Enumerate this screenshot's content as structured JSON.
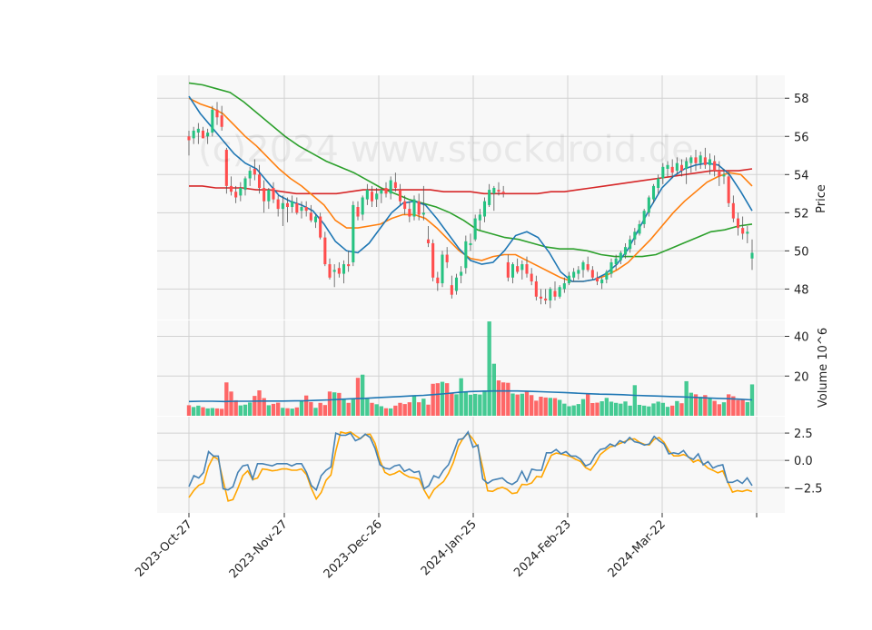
{
  "chart_data": {
    "type": "candlestick",
    "watermark": "(c)2024 www.stockdroid.de",
    "colors": {
      "up": "#26c281",
      "down": "#ff4d4d",
      "ma_fast": "#1f77b4",
      "ma_mid": "#ff7f0e",
      "ma_slow": "#2ca02c",
      "ma_long": "#d62728",
      "volume_avg": "#1f77b4",
      "indicator_a": "#4682b4",
      "indicator_b": "#ffa500",
      "panel_bg": "#f8f8f8",
      "grid": "#d2d2d2"
    },
    "x_ticks": [
      "2023-Oct-27",
      "2023-Nov-27",
      "2023-Dec-26",
      "2024-Jan-25",
      "2024-Feb-23",
      "2024-Mar-22"
    ],
    "price_panel": {
      "ylabel": "Price",
      "yticks": [
        48,
        50,
        52,
        54,
        56,
        58
      ],
      "ylim": [
        46.4,
        59.2
      ],
      "candles": [
        [
          56.0,
          56.3,
          55.0,
          55.8
        ],
        [
          55.9,
          56.5,
          55.6,
          56.3
        ],
        [
          56.2,
          56.7,
          55.6,
          56.4
        ],
        [
          56.3,
          56.5,
          55.9,
          55.9
        ],
        [
          56.0,
          56.4,
          55.6,
          56.2
        ],
        [
          56.2,
          57.6,
          56.0,
          57.4
        ],
        [
          57.4,
          57.8,
          56.6,
          57.0
        ],
        [
          57.1,
          57.6,
          56.3,
          56.5
        ],
        [
          55.3,
          55.4,
          53.0,
          53.4
        ],
        [
          53.4,
          53.9,
          52.9,
          53.1
        ],
        [
          53.1,
          53.4,
          52.5,
          52.8
        ],
        [
          52.9,
          53.6,
          52.6,
          53.3
        ],
        [
          53.2,
          53.9,
          52.9,
          53.8
        ],
        [
          53.8,
          54.4,
          53.4,
          54.2
        ],
        [
          54.3,
          54.8,
          53.7,
          54.0
        ],
        [
          54.0,
          54.5,
          53.0,
          53.3
        ],
        [
          53.3,
          53.7,
          52.0,
          52.6
        ],
        [
          52.6,
          53.3,
          52.2,
          53.2
        ],
        [
          53.3,
          53.6,
          52.5,
          52.7
        ],
        [
          52.7,
          52.9,
          51.8,
          52.2
        ],
        [
          52.2,
          52.9,
          51.3,
          52.5
        ],
        [
          52.5,
          52.8,
          51.5,
          52.3
        ],
        [
          52.3,
          52.9,
          52.0,
          52.6
        ],
        [
          52.5,
          52.8,
          51.9,
          52.0
        ],
        [
          52.1,
          52.6,
          51.7,
          52.3
        ],
        [
          52.3,
          52.6,
          51.8,
          52.1
        ],
        [
          52.0,
          52.4,
          51.5,
          51.6
        ],
        [
          51.5,
          51.9,
          51.2,
          51.8
        ],
        [
          51.8,
          52.0,
          50.6,
          50.7
        ],
        [
          50.7,
          51.0,
          49.2,
          49.3
        ],
        [
          49.3,
          49.6,
          48.5,
          48.6
        ],
        [
          48.9,
          49.3,
          48.1,
          49.0
        ],
        [
          49.1,
          49.4,
          48.6,
          48.8
        ],
        [
          48.8,
          49.5,
          48.3,
          49.3
        ],
        [
          49.3,
          50.0,
          48.9,
          49.2
        ],
        [
          49.4,
          52.6,
          49.2,
          52.4
        ],
        [
          52.3,
          52.6,
          51.6,
          51.8
        ],
        [
          51.9,
          52.9,
          51.6,
          52.8
        ],
        [
          52.7,
          53.5,
          52.4,
          53.2
        ],
        [
          53.1,
          53.4,
          52.3,
          52.6
        ],
        [
          52.7,
          53.3,
          52.3,
          53.0
        ],
        [
          53.0,
          53.3,
          52.5,
          53.2
        ],
        [
          53.3,
          53.6,
          52.8,
          53.0
        ],
        [
          53.0,
          53.9,
          52.7,
          53.7
        ],
        [
          53.6,
          54.1,
          53.1,
          53.3
        ],
        [
          53.2,
          53.5,
          52.4,
          52.6
        ],
        [
          52.6,
          52.9,
          51.9,
          52.2
        ],
        [
          52.2,
          52.6,
          51.5,
          51.8
        ],
        [
          51.8,
          52.9,
          51.6,
          52.7
        ],
        [
          52.6,
          53.0,
          51.6,
          51.9
        ],
        [
          51.9,
          53.4,
          51.6,
          52.0
        ],
        [
          50.6,
          51.3,
          50.2,
          50.4
        ],
        [
          50.4,
          50.6,
          48.4,
          48.6
        ],
        [
          48.6,
          48.9,
          47.9,
          48.3
        ],
        [
          48.3,
          50.0,
          48.1,
          49.8
        ],
        [
          49.8,
          50.2,
          49.1,
          49.4
        ],
        [
          48.2,
          48.7,
          47.5,
          47.7
        ],
        [
          47.9,
          48.8,
          47.7,
          48.6
        ],
        [
          48.7,
          49.2,
          48.3,
          48.9
        ],
        [
          49.1,
          50.8,
          48.8,
          50.5
        ],
        [
          50.3,
          50.9,
          50.0,
          50.4
        ],
        [
          50.6,
          51.9,
          50.5,
          51.7
        ],
        [
          51.6,
          52.2,
          51.1,
          51.9
        ],
        [
          51.8,
          52.8,
          51.5,
          52.6
        ],
        [
          52.4,
          53.5,
          52.3,
          53.2
        ],
        [
          53.0,
          53.4,
          52.1,
          53.3
        ],
        [
          53.2,
          53.6,
          52.9,
          53.1
        ],
        [
          53.1,
          53.4,
          52.8,
          53.0
        ],
        [
          49.4,
          49.8,
          48.4,
          48.6
        ],
        [
          48.6,
          49.4,
          48.3,
          49.3
        ],
        [
          49.2,
          49.6,
          48.8,
          48.9
        ],
        [
          49.0,
          49.5,
          48.5,
          49.3
        ],
        [
          49.3,
          49.7,
          48.6,
          48.8
        ],
        [
          48.8,
          49.1,
          48.2,
          48.4
        ],
        [
          48.4,
          48.7,
          47.4,
          47.6
        ],
        [
          47.6,
          48.0,
          47.2,
          47.5
        ],
        [
          47.5,
          48.0,
          47.2,
          47.4
        ],
        [
          47.4,
          48.1,
          47.0,
          48.0
        ],
        [
          47.9,
          48.4,
          47.4,
          47.6
        ],
        [
          47.6,
          48.2,
          47.5,
          48.1
        ],
        [
          48.0,
          48.6,
          47.8,
          48.3
        ],
        [
          48.3,
          48.9,
          48.2,
          48.7
        ],
        [
          48.6,
          49.1,
          48.4,
          48.9
        ],
        [
          48.8,
          49.2,
          48.5,
          49.0
        ],
        [
          49.0,
          49.5,
          48.6,
          49.4
        ],
        [
          49.3,
          49.7,
          48.9,
          49.0
        ],
        [
          49.0,
          49.2,
          48.5,
          48.6
        ],
        [
          48.6,
          48.9,
          48.2,
          48.4
        ],
        [
          48.3,
          48.6,
          48.0,
          48.5
        ],
        [
          48.5,
          49.0,
          48.3,
          48.9
        ],
        [
          48.8,
          49.6,
          48.6,
          49.4
        ],
        [
          49.3,
          49.8,
          49.0,
          49.6
        ],
        [
          49.5,
          50.0,
          49.3,
          49.9
        ],
        [
          49.8,
          50.4,
          49.6,
          50.2
        ],
        [
          50.1,
          50.8,
          49.9,
          50.6
        ],
        [
          50.6,
          51.2,
          50.3,
          51.0
        ],
        [
          50.9,
          51.6,
          50.8,
          51.4
        ],
        [
          51.4,
          52.2,
          51.2,
          52.1
        ],
        [
          52.0,
          52.9,
          51.8,
          52.8
        ],
        [
          52.7,
          53.5,
          52.5,
          53.4
        ],
        [
          53.3,
          54.0,
          53.0,
          53.8
        ],
        [
          53.8,
          54.6,
          53.5,
          54.4
        ],
        [
          54.3,
          54.7,
          53.9,
          54.5
        ],
        [
          54.4,
          54.8,
          53.8,
          54.1
        ],
        [
          54.2,
          54.9,
          54.0,
          54.6
        ],
        [
          54.5,
          54.8,
          53.9,
          54.2
        ],
        [
          54.3,
          54.9,
          53.5,
          54.7
        ],
        [
          54.6,
          55.0,
          54.1,
          54.9
        ],
        [
          54.9,
          55.3,
          54.2,
          54.6
        ],
        [
          54.6,
          55.2,
          54.3,
          55.0
        ],
        [
          54.9,
          55.4,
          54.3,
          54.5
        ],
        [
          54.5,
          55.1,
          54.0,
          54.8
        ],
        [
          54.7,
          55.0,
          53.9,
          54.2
        ],
        [
          54.2,
          54.7,
          53.4,
          53.9
        ],
        [
          53.9,
          54.3,
          53.5,
          54.0
        ],
        [
          53.9,
          54.2,
          52.3,
          52.5
        ],
        [
          52.5,
          52.9,
          51.5,
          51.7
        ],
        [
          51.7,
          52.0,
          50.8,
          51.2
        ],
        [
          51.2,
          51.8,
          50.6,
          50.9
        ],
        [
          50.9,
          51.3,
          50.4,
          51.0
        ],
        [
          49.6,
          50.6,
          49.0,
          49.9
        ]
      ],
      "ma_fast": [
        58.1,
        57.2,
        56.5,
        55.8,
        55.1,
        54.6,
        54.3,
        53.6,
        52.9,
        52.6,
        52.4,
        52.1,
        51.4,
        50.5,
        50.0,
        49.9,
        50.4,
        51.2,
        52.0,
        52.5,
        52.6,
        52.4,
        51.7,
        50.9,
        50.1,
        49.5,
        49.3,
        49.4,
        50.0,
        50.8,
        51.0,
        50.7,
        49.9,
        48.9,
        48.4,
        48.4,
        48.5,
        48.8,
        49.3,
        50.1,
        51.2,
        52.3,
        53.3,
        53.9,
        54.3,
        54.5,
        54.6,
        54.5,
        54.0,
        53.1,
        52.1
      ],
      "ma_mid": [
        58.0,
        57.7,
        57.5,
        57.2,
        56.6,
        56.0,
        55.5,
        54.9,
        54.3,
        53.8,
        53.4,
        52.9,
        52.4,
        51.6,
        51.2,
        51.2,
        51.3,
        51.4,
        51.7,
        51.9,
        51.9,
        51.7,
        51.2,
        50.6,
        50.0,
        49.6,
        49.5,
        49.7,
        49.8,
        49.8,
        49.5,
        49.2,
        48.9,
        48.6,
        48.4,
        48.4,
        48.5,
        48.7,
        49.0,
        49.4,
        50.0,
        50.6,
        51.3,
        52.0,
        52.6,
        53.1,
        53.6,
        53.9,
        54.1,
        54.0,
        53.4
      ],
      "ma_slow": [
        58.8,
        58.7,
        58.5,
        58.3,
        57.8,
        57.2,
        56.6,
        56.0,
        55.5,
        55.1,
        54.7,
        54.4,
        54.1,
        53.7,
        53.3,
        53.0,
        52.7,
        52.5,
        52.3,
        52.0,
        51.6,
        51.1,
        50.9,
        50.7,
        50.6,
        50.4,
        50.2,
        50.1,
        50.1,
        50.0,
        49.8,
        49.7,
        49.7,
        49.7,
        49.8,
        50.1,
        50.4,
        50.7,
        51.0,
        51.1,
        51.3,
        51.4
      ],
      "ma_long": [
        53.4,
        53.4,
        53.3,
        53.3,
        53.3,
        53.2,
        53.2,
        53.1,
        53.0,
        53.0,
        53.0,
        53.0,
        53.1,
        53.2,
        53.2,
        53.2,
        53.2,
        53.2,
        53.2,
        53.1,
        53.1,
        53.1,
        53.0,
        53.0,
        53.0,
        53.0,
        53.0,
        53.1,
        53.1,
        53.2,
        53.3,
        53.4,
        53.5,
        53.6,
        53.7,
        53.8,
        53.9,
        54.0,
        54.1,
        54.2,
        54.2,
        54.2,
        54.3
      ]
    },
    "volume_panel": {
      "ylabel": "Volume  10^6",
      "yticks": [
        20,
        40
      ],
      "ylim": [
        0,
        48
      ],
      "volumes": [
        5.3,
        4.4,
        5.1,
        4.3,
        3.7,
        3.9,
        3.7,
        3.5,
        16.8,
        12.2,
        7.8,
        5.2,
        5.6,
        6.7,
        10.0,
        12.8,
        8.9,
        5.3,
        6.0,
        6.6,
        4.0,
        3.8,
        3.6,
        4.2,
        7.6,
        10.2,
        6.9,
        4.0,
        6.5,
        5.4,
        12.2,
        11.8,
        11.5,
        8.7,
        6.5,
        8.8,
        19.1,
        20.7,
        8.6,
        6.5,
        5.8,
        4.8,
        3.8,
        3.7,
        5.1,
        6.5,
        5.9,
        6.8,
        10.3,
        6.8,
        8.6,
        5.6,
        16.1,
        16.4,
        17.1,
        16.4,
        11.2,
        10.8,
        18.9,
        12.1,
        10.6,
        11.0,
        10.7,
        12.8,
        47.5,
        26.2,
        17.8,
        16.8,
        16.6,
        11.2,
        10.7,
        11.1,
        12.5,
        10.4,
        7.6,
        9.6,
        9.2,
        9.0,
        8.9,
        8.0,
        6.1,
        4.8,
        5.2,
        5.9,
        8.4,
        11.1,
        6.4,
        6.6,
        7.3,
        9.0,
        7.1,
        6.5,
        6.1,
        7.2,
        5.1,
        15.4,
        5.5,
        5.1,
        4.7,
        6.2,
        7.1,
        6.5,
        4.5,
        5.1,
        7.4,
        6.3,
        17.4,
        11.6,
        10.8,
        9.5,
        10.4,
        8.7,
        7.5,
        5.8,
        6.8,
        10.8,
        9.8,
        7.9,
        8.1,
        6.9,
        15.8
      ],
      "avg_volume": [
        7.2,
        7.3,
        7.3,
        7.2,
        7.3,
        7.3,
        7.4,
        7.4,
        7.4,
        7.5,
        7.6,
        7.8,
        8.0,
        8.3,
        8.6,
        8.8,
        9.1,
        9.4,
        9.7,
        10.0,
        10.3,
        10.7,
        11.2,
        11.8,
        12.2,
        12.4,
        12.5,
        12.5,
        12.5,
        12.3,
        12.1,
        11.9,
        11.7,
        11.4,
        11.1,
        10.9,
        10.8,
        10.6,
        10.3,
        10.1,
        9.9,
        9.7,
        9.5,
        9.3,
        9.0,
        8.8,
        8.6,
        8.3,
        8.0
      ]
    },
    "indicator_panel": {
      "yticks": [
        2.5,
        0.0,
        -2.5
      ],
      "ytick_labels": [
        "2.5",
        "0.0",
        "−2.5"
      ],
      "ylim": [
        -4.8,
        4.0
      ],
      "series_a": [
        -2.4,
        -1.4,
        -1.6,
        -1.1,
        0.8,
        0.4,
        0.4,
        -2.6,
        -2.7,
        -2.4,
        -1.1,
        -0.5,
        -0.4,
        -1.7,
        -0.3,
        -0.3,
        -0.4,
        -0.5,
        -0.3,
        -0.3,
        -0.3,
        -0.5,
        -0.3,
        -0.3,
        -1.1,
        -2.3,
        -2.7,
        -1.4,
        -0.9,
        -0.6,
        2.5,
        2.3,
        2.3,
        2.5,
        1.8,
        2.0,
        2.4,
        2.1,
        1.1,
        -0.4,
        -0.7,
        -0.8,
        -0.5,
        -0.4,
        -1.0,
        -0.8,
        -1.1,
        -1.0,
        -2.6,
        -2.3,
        -1.4,
        -1.6,
        -0.9,
        -0.4,
        0.7,
        1.9,
        2.0,
        2.6,
        1.2,
        1.4,
        -1.7,
        -2.1,
        -1.8,
        -1.7,
        -1.6,
        -2.0,
        -2.2,
        -1.9,
        -1.0,
        -1.9,
        -0.8,
        -0.9,
        -0.9,
        0.7,
        0.7,
        1.0,
        0.6,
        0.8,
        0.4,
        0.4,
        0.1,
        -0.5,
        -0.3,
        0.5,
        1.0,
        1.1,
        1.5,
        1.3,
        1.8,
        1.6,
        2.1,
        1.7,
        1.6,
        1.4,
        1.5,
        2.2,
        1.8,
        1.5,
        0.6,
        0.7,
        0.6,
        0.9,
        0.3,
        0.1,
        0.6,
        -0.4,
        -0.1,
        -0.7,
        -0.5,
        -0.4,
        -2.0,
        -2.0,
        -1.8,
        -2.1,
        -1.6,
        -2.3
      ]
    }
  }
}
